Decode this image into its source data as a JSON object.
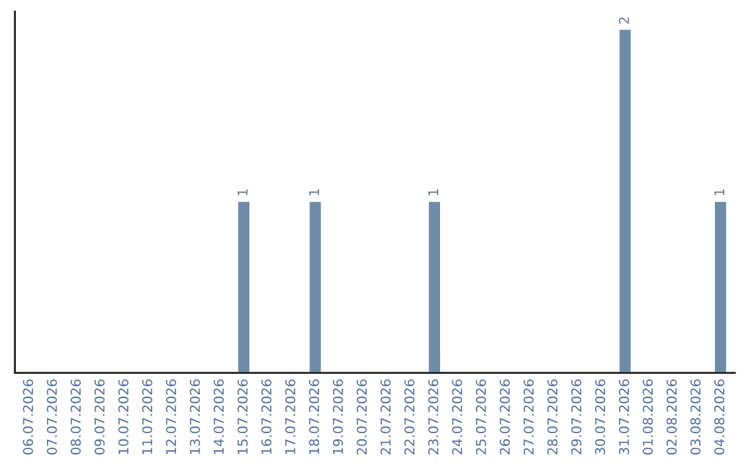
{
  "chart_data": {
    "type": "bar",
    "categories": [
      "06.07.2026",
      "07.07.2026",
      "08.07.2026",
      "09.07.2026",
      "10.07.2026",
      "11.07.2026",
      "12.07.2026",
      "13.07.2026",
      "14.07.2026",
      "15.07.2026",
      "16.07.2026",
      "17.07.2026",
      "18.07.2026",
      "19.07.2026",
      "20.07.2026",
      "21.07.2026",
      "22.07.2026",
      "23.07.2026",
      "24.07.2026",
      "25.07.2026",
      "26.07.2026",
      "27.07.2026",
      "28.07.2026",
      "29.07.2026",
      "30.07.2026",
      "31.07.2026",
      "01.08.2026",
      "02.08.2026",
      "03.08.2026",
      "04.08.2026"
    ],
    "values": [
      0,
      0,
      0,
      0,
      0,
      0,
      0,
      0,
      0,
      1,
      0,
      0,
      1,
      0,
      0,
      0,
      0,
      1,
      0,
      0,
      0,
      0,
      0,
      0,
      0,
      2,
      0,
      0,
      0,
      1
    ],
    "value_labels": [
      null,
      null,
      null,
      null,
      null,
      null,
      null,
      null,
      null,
      "1",
      null,
      null,
      "1",
      null,
      null,
      null,
      null,
      "1",
      null,
      null,
      null,
      null,
      null,
      null,
      null,
      "2",
      null,
      null,
      null,
      "1"
    ],
    "color": "#6d8ca8",
    "tick_labels": "x",
    "grid": false,
    "legend": false
  }
}
